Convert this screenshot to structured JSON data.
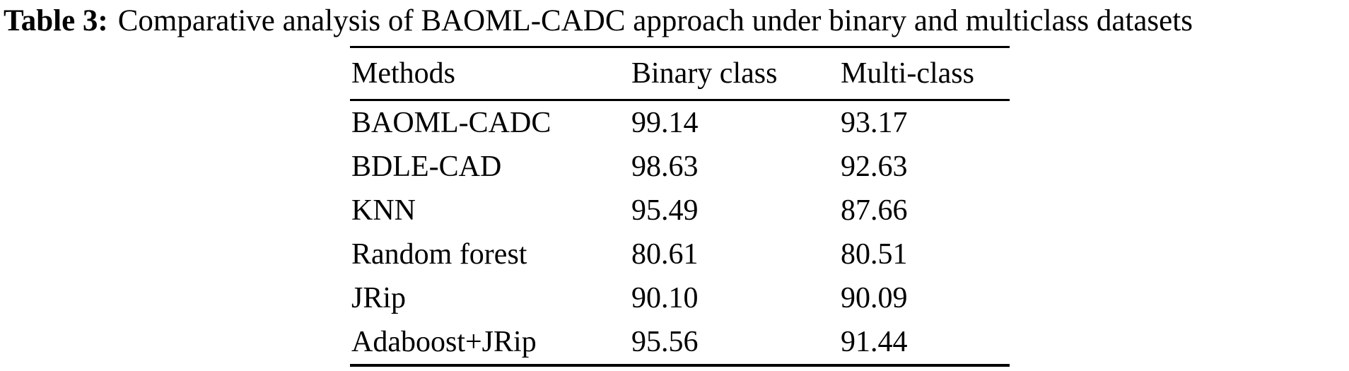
{
  "caption": {
    "label": "Table 3:",
    "text": "Comparative analysis of BAOML-CADC approach under binary and multiclass datasets"
  },
  "table": {
    "columns": [
      "Methods",
      "Binary class",
      "Multi-class"
    ],
    "rows": [
      [
        "BAOML-CADC",
        "99.14",
        "93.17"
      ],
      [
        "BDLE-CAD",
        "98.63",
        "92.63"
      ],
      [
        "KNN",
        "95.49",
        "87.66"
      ],
      [
        "Random forest",
        "80.61",
        "80.51"
      ],
      [
        "JRip",
        "90.10",
        "90.09"
      ],
      [
        "Adaboost+JRip",
        "95.56",
        "91.44"
      ]
    ]
  },
  "colors": {
    "text": "#000000",
    "background": "#ffffff",
    "rule": "#000000"
  }
}
